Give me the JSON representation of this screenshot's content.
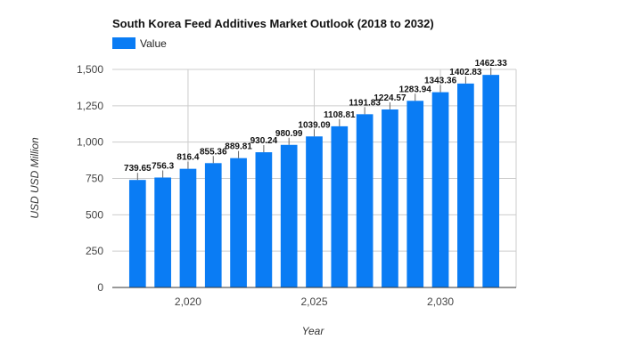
{
  "chart_data": {
    "type": "bar",
    "title": "South Korea Feed Additives Market Outlook (2018 to 2032)",
    "xlabel": "Year",
    "ylabel": "USD USD Million",
    "ylim": [
      0,
      1500
    ],
    "yticks": [
      0,
      250,
      500,
      750,
      1000,
      1250,
      1500
    ],
    "ytick_labels": [
      "0",
      "250",
      "500",
      "750",
      "1,000",
      "1,250",
      "1,500"
    ],
    "x_range": [
      2017,
      2033
    ],
    "xticks": [
      2020,
      2025,
      2030
    ],
    "xtick_labels": [
      "2,020",
      "2,025",
      "2,030"
    ],
    "grid": true,
    "legend_position": "top-left",
    "color": "#0a7cf4",
    "series": [
      {
        "name": "Value",
        "x": [
          2018,
          2019,
          2020,
          2021,
          2022,
          2023,
          2024,
          2025,
          2026,
          2027,
          2028,
          2029,
          2030,
          2031,
          2032
        ],
        "values": [
          739.65,
          756.3,
          816.4,
          855.36,
          889.81,
          930.24,
          980.99,
          1039.09,
          1108.81,
          1191.83,
          1224.57,
          1283.94,
          1343.36,
          1402.83,
          1462.33
        ],
        "labels": [
          "739.65",
          "756.3",
          "816.4",
          "855.36",
          "889.81",
          "930.24",
          "980.99",
          "1039.09",
          "1108.81",
          "1191.83",
          "1224.57",
          "1283.94",
          "1343.36",
          "1402.83",
          "1462.33"
        ]
      }
    ]
  }
}
